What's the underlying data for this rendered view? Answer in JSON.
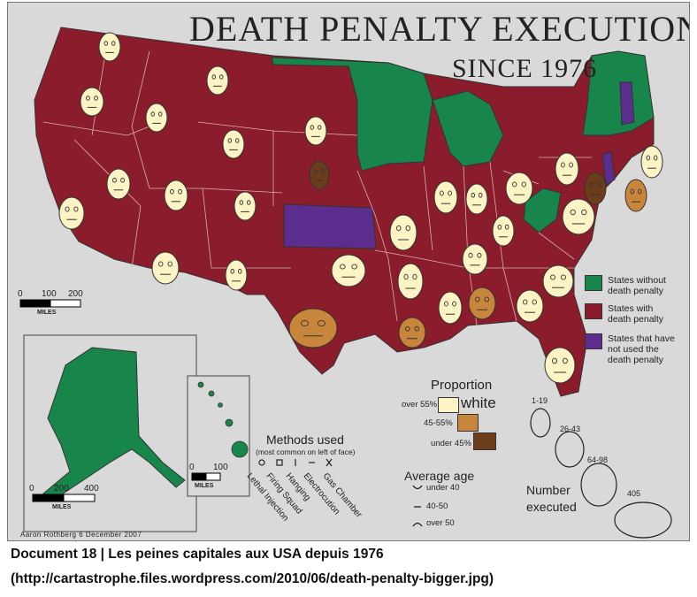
{
  "title": {
    "line1": "DEATH PENALTY EXECUTIONS",
    "line2": "SINCE 1976"
  },
  "colors": {
    "ocean_background": "#d9d9d9",
    "with_death_penalty": "#8b1c2b",
    "without_death_penalty": "#18854a",
    "not_used": "#5b2d8c",
    "face_white_over_55": "#fcf4c4",
    "face_45_55": "#c8853c",
    "face_under_45": "#6b3d1a"
  },
  "legend_status": [
    {
      "label": "States without death penalty",
      "line1": "States without",
      "line2": "death penalty",
      "color": "#18854a"
    },
    {
      "label": "States with death penalty",
      "line1": "States with",
      "line2": "death penalty",
      "color": "#8b1c2b"
    },
    {
      "label": "States that have not used the death penalty",
      "line1": "States that have",
      "line2": "not used the",
      "line3": "death penalty",
      "color": "#5b2d8c"
    }
  ],
  "proportion_legend": {
    "title": "Proportion",
    "word": "white",
    "items": [
      {
        "label": "over 55%",
        "color": "#fcf4c4"
      },
      {
        "label": "45-55%",
        "color": "#c8853c"
      },
      {
        "label": "under 45%",
        "color": "#6b3d1a"
      }
    ]
  },
  "methods_legend": {
    "title": "Methods used",
    "subtitle": "(most common on left of face)",
    "items": [
      {
        "symbol": "o",
        "label": "Lethal Injection"
      },
      {
        "symbol": "□",
        "label": "Firing Squad"
      },
      {
        "symbol": "ı",
        "label": "Hanging"
      },
      {
        "symbol": "—",
        "label": "Electrocution"
      },
      {
        "symbol": "×",
        "label": "Gas Chamber"
      }
    ]
  },
  "age_legend": {
    "title": "Average age",
    "items": [
      {
        "mouth": "smile",
        "label": "under 40"
      },
      {
        "mouth": "flat",
        "label": "40-50"
      },
      {
        "mouth": "frown",
        "label": "over 50"
      }
    ]
  },
  "number_legend": {
    "title_line1": "Number",
    "title_line2": "executed",
    "items": [
      {
        "label": "1-19"
      },
      {
        "label": "26-43"
      },
      {
        "label": "64-98"
      },
      {
        "label": "405"
      }
    ]
  },
  "scales": {
    "main": {
      "ticks": [
        "0",
        "100",
        "200"
      ],
      "unit": "MILES"
    },
    "alaska": {
      "ticks": [
        "0",
        "200",
        "400"
      ],
      "unit": "MILES"
    },
    "hawaii": {
      "ticks": [
        "0",
        "100"
      ],
      "unit": "MILES"
    }
  },
  "credit": "Aaron Rothberg 6 December 2007",
  "caption": {
    "line1": "Document 18 | Les peines capitales aux USA depuis 1976",
    "line2": "(http://cartastrophe.files.wordpress.com/2010/06/death-penalty-bigger.jpg)"
  }
}
